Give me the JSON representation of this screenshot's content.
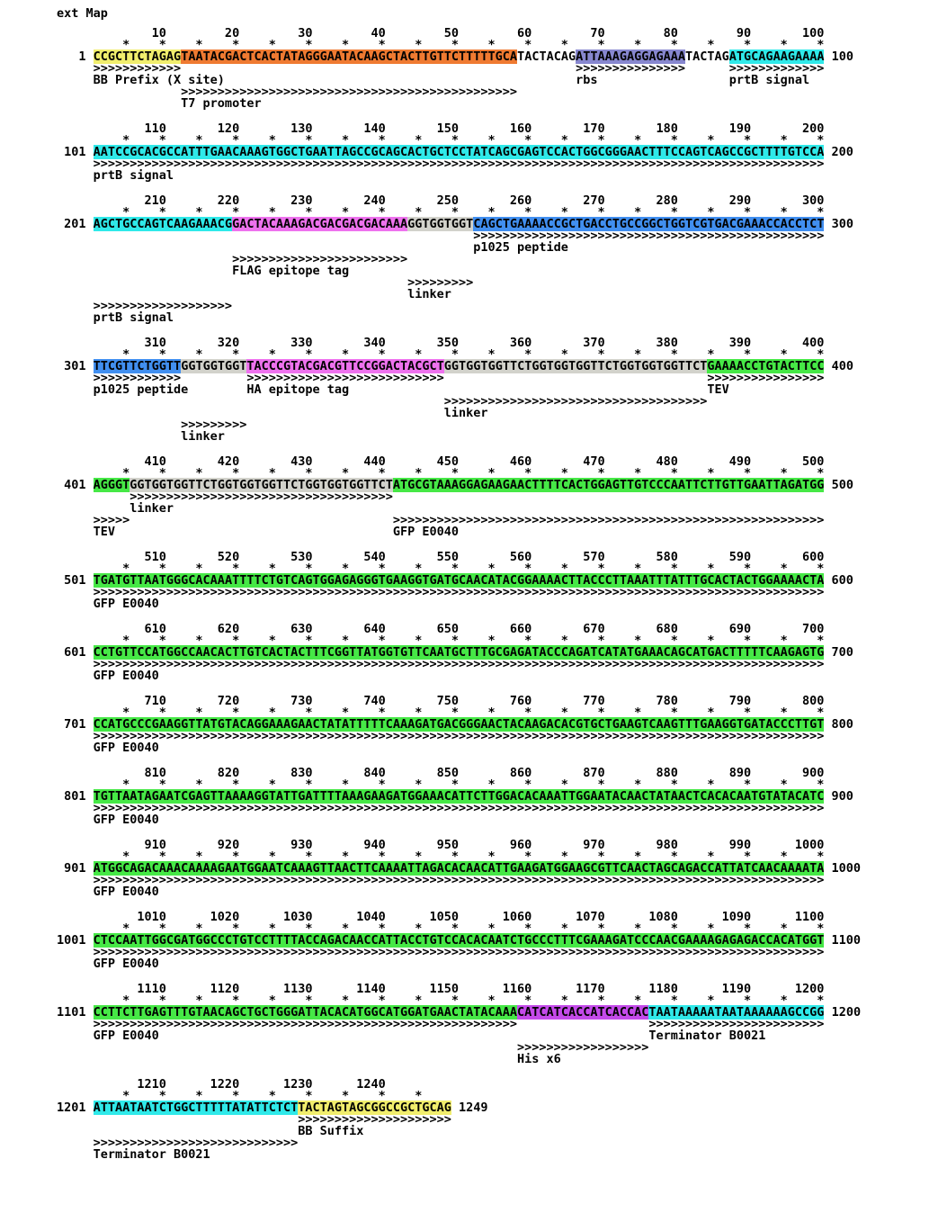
{
  "header": {
    "title": "ext Map"
  },
  "palette": {
    "yellow": "#f1ee6d",
    "orange": "#ef7a31",
    "slate": "#8787cf",
    "cyan": "#2fe9e9",
    "pink": "#ee72ee",
    "gray": "#d2d2cb",
    "blue": "#418ff0",
    "green": "#46e846",
    "purple": "#c44aea"
  },
  "map": {
    "blocks": [
      {
        "start": 1,
        "end": 100,
        "segments": [
          {
            "text": "CCGCTTCTAGAG",
            "color": "yellow"
          },
          {
            "text": "TAATACGACTCACTATAGGGAATACAAGCTACTTGTTCTTTTTGCA",
            "color": "orange"
          },
          {
            "text": "TACTACAG",
            "color": null
          },
          {
            "text": "ATTAAAGAGGAGAAA",
            "color": "slate"
          },
          {
            "text": "TACTAG",
            "color": null
          },
          {
            "text": "ATGCAGAAGAAAA",
            "color": "cyan"
          }
        ],
        "annotation_rows": [
          {
            "features": [
              {
                "pos": 1,
                "len": 12,
                "label": "BB Prefix (X site)"
              },
              {
                "pos": 67,
                "len": 15,
                "label": "rbs"
              },
              {
                "pos": 88,
                "len": 13,
                "label": "prtB signal"
              }
            ]
          },
          {
            "features": [
              {
                "pos": 13,
                "len": 46,
                "label": "T7 promoter"
              }
            ]
          }
        ]
      },
      {
        "start": 101,
        "end": 200,
        "segments": [
          {
            "text": "AATCCGCACGCCATTTGAACAAAGTGGCTGAATTAGCCGCAGCACTGCTCCTATCAGCGAGTCCACTGGCGGGAACTTTCCAGTCAGCCGCTTTTGTCCA",
            "color": "cyan"
          }
        ],
        "annotation_rows": [
          {
            "features": [
              {
                "pos": 101,
                "len": 100,
                "label": "prtB signal"
              }
            ]
          }
        ]
      },
      {
        "start": 201,
        "end": 300,
        "segments": [
          {
            "text": "AGCTGCCAGTCAAGAAACG",
            "color": "cyan"
          },
          {
            "text": "GACTACAAAGACGACGACGACAAA",
            "color": "pink"
          },
          {
            "text": "GGTGGTGGT",
            "color": "gray"
          },
          {
            "text": "CAGCTGAAAACCGCTGACCTGCCGGCTGGTCGTGACGAAACCACCTCT",
            "color": "blue"
          }
        ],
        "annotation_rows": [
          {
            "features": [
              {
                "pos": 253,
                "len": 48,
                "label": "p1025 peptide"
              }
            ]
          },
          {
            "features": [
              {
                "pos": 220,
                "len": 24,
                "label": "FLAG epitope tag"
              }
            ]
          },
          {
            "features": [
              {
                "pos": 244,
                "len": 9,
                "label": "linker"
              }
            ]
          },
          {
            "features": [
              {
                "pos": 201,
                "len": 19,
                "label": "prtB signal"
              }
            ]
          }
        ]
      },
      {
        "start": 301,
        "end": 400,
        "segments": [
          {
            "text": "TTCGTTCTGGTT",
            "color": "blue"
          },
          {
            "text": "GGTGGTGGT",
            "color": "gray"
          },
          {
            "text": "TACCCGTACGACGTTCCGGACTACGCT",
            "color": "pink"
          },
          {
            "text": "GGTGGTGGTTCTGGTGGTGGTTCTGGTGGTGGTTCT",
            "color": "gray"
          },
          {
            "text": "GAAAACCTGTACTTCC",
            "color": "green"
          }
        ],
        "annotation_rows": [
          {
            "features": [
              {
                "pos": 301,
                "len": 12,
                "label": "p1025 peptide"
              },
              {
                "pos": 322,
                "len": 27,
                "label": "HA epitope tag"
              },
              {
                "pos": 385,
                "len": 16,
                "label": "TEV"
              }
            ]
          },
          {
            "features": [
              {
                "pos": 349,
                "len": 36,
                "label": "linker"
              }
            ]
          },
          {
            "features": [
              {
                "pos": 313,
                "len": 9,
                "label": "linker"
              }
            ]
          }
        ]
      },
      {
        "start": 401,
        "end": 500,
        "segments": [
          {
            "text": "AGGGT",
            "color": "green"
          },
          {
            "text": "GGTGGTGGTTCTGGTGGTGGTTCTGGTGGTGGTTCT",
            "color": "gray"
          },
          {
            "text": "ATGCGTAAAGGAGAAGAACTTTTCACTGGAGTTGTCCCAATTCTTGTTGAATTAGATGG",
            "color": "green"
          }
        ],
        "annotation_rows": [
          {
            "features": [
              {
                "pos": 406,
                "len": 36,
                "label": "linker"
              }
            ]
          },
          {
            "features": [
              {
                "pos": 401,
                "len": 5,
                "label": "TEV"
              },
              {
                "pos": 442,
                "len": 59,
                "label": "GFP E0040"
              }
            ]
          }
        ]
      },
      {
        "start": 501,
        "end": 600,
        "segments": [
          {
            "text": "TGATGTTAATGGGCACAAATTTTCTGTCAGTGGAGAGGGTGAAGGTGATGCAACATACGGAAAACTTACCCTTAAATTTATTTGCACTACTGGAAAACTA",
            "color": "green"
          }
        ],
        "annotation_rows": [
          {
            "features": [
              {
                "pos": 501,
                "len": 100,
                "label": "GFP E0040"
              }
            ]
          }
        ]
      },
      {
        "start": 601,
        "end": 700,
        "segments": [
          {
            "text": "CCTGTTCCATGGCCAACACTTGTCACTACTTTCGGTTATGGTGTTCAATGCTTTGCGAGATACCCAGATCATATGAAACAGCATGACTTTTTCAAGAGTG",
            "color": "green"
          }
        ],
        "annotation_rows": [
          {
            "features": [
              {
                "pos": 601,
                "len": 100,
                "label": "GFP E0040"
              }
            ]
          }
        ]
      },
      {
        "start": 701,
        "end": 800,
        "segments": [
          {
            "text": "CCATGCCCGAAGGTTATGTACAGGAAAGAACTATATTTTTCAAAGATGACGGGAACTACAAGACACGTGCTGAAGTCAAGTTTGAAGGTGATACCCTTGT",
            "color": "green"
          }
        ],
        "annotation_rows": [
          {
            "features": [
              {
                "pos": 701,
                "len": 100,
                "label": "GFP E0040"
              }
            ]
          }
        ]
      },
      {
        "start": 801,
        "end": 900,
        "segments": [
          {
            "text": "TGTTAATAGAATCGAGTTAAAAGGTATTGATTTTAAAGAAGATGGAAACATTCTTGGACACAAATTGGAATACAACTATAACTCACACAATGTATACATC",
            "color": "green"
          }
        ],
        "annotation_rows": [
          {
            "features": [
              {
                "pos": 801,
                "len": 100,
                "label": "GFP E0040"
              }
            ]
          }
        ]
      },
      {
        "start": 901,
        "end": 1000,
        "segments": [
          {
            "text": "ATGGCAGACAAACAAAAGAATGGAATCAAAGTTAACTTCAAAATTAGACACAACATTGAAGATGGAAGCGTTCAACTAGCAGACCATTATCAACAAAATA",
            "color": "green"
          }
        ],
        "annotation_rows": [
          {
            "features": [
              {
                "pos": 901,
                "len": 100,
                "label": "GFP E0040"
              }
            ]
          }
        ]
      },
      {
        "start": 1001,
        "end": 1100,
        "segments": [
          {
            "text": "CTCCAATTGGCGATGGCCCTGTCCTTTTACCAGACAACCATTACCTGTCCACACAATCTGCCCTTTCGAAAGATCCCAACGAAAAGAGAGACCACATGGT",
            "color": "green"
          }
        ],
        "annotation_rows": [
          {
            "features": [
              {
                "pos": 1001,
                "len": 100,
                "label": "GFP E0040"
              }
            ]
          }
        ]
      },
      {
        "start": 1101,
        "end": 1200,
        "segments": [
          {
            "text": "CCTTCTTGAGTTTGTAACAGCTGCTGGGATTACACATGGCATGGATGAACTATACAAA",
            "color": "green"
          },
          {
            "text": "CATCATCACCATCACCAC",
            "color": "purple"
          },
          {
            "text": "TAATAAAAATAATAAAAAAGCCGG",
            "color": "cyan"
          }
        ],
        "annotation_rows": [
          {
            "features": [
              {
                "pos": 1101,
                "len": 58,
                "label": "GFP E0040"
              },
              {
                "pos": 1177,
                "len": 24,
                "label": "Terminator B0021"
              }
            ]
          },
          {
            "features": [
              {
                "pos": 1159,
                "len": 18,
                "label": "His x6"
              }
            ]
          }
        ]
      },
      {
        "start": 1201,
        "end": 1249,
        "segments": [
          {
            "text": "ATTAATAATCTGGCTTTTTATATTCTCT",
            "color": "cyan"
          },
          {
            "text": "TACTAGTAGCGGCCGCTGCAG",
            "color": "yellow"
          }
        ],
        "annotation_rows": [
          {
            "features": [
              {
                "pos": 1229,
                "len": 21,
                "label": "BB Suffix"
              }
            ]
          },
          {
            "features": [
              {
                "pos": 1201,
                "len": 28,
                "label": "Terminator B0021"
              }
            ]
          }
        ]
      }
    ]
  }
}
